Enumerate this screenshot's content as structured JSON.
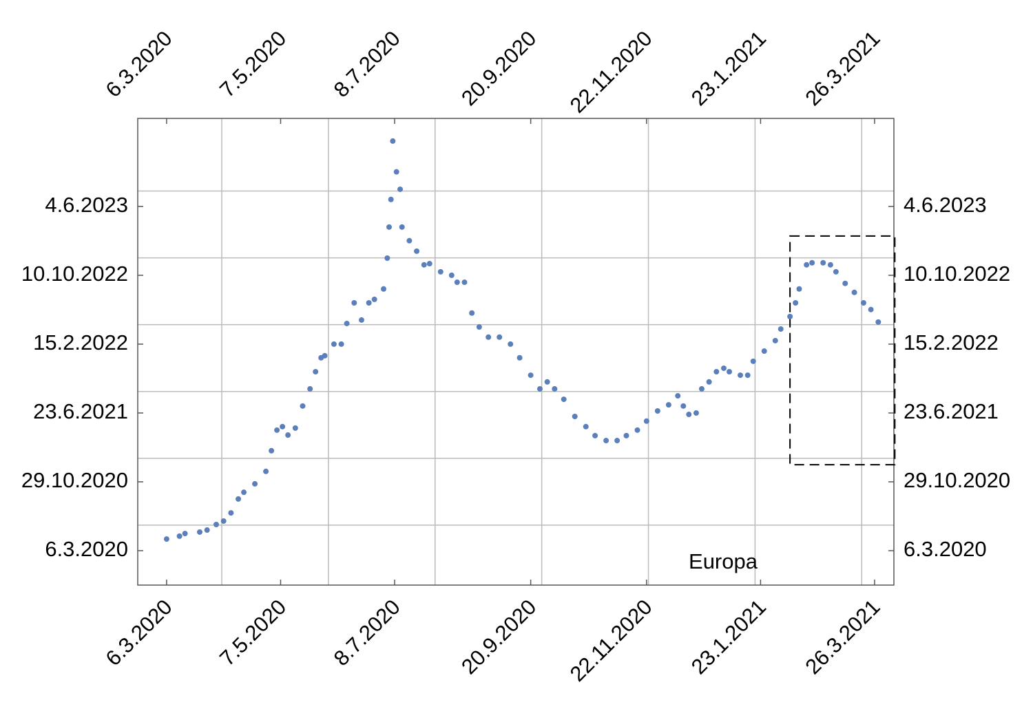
{
  "chart_data": {
    "type": "scatter",
    "annotation": "Europa",
    "color": "#5b7fbb",
    "x": [
      0,
      7,
      10,
      18,
      22,
      27,
      31,
      35,
      39,
      42,
      48,
      54,
      57,
      60,
      63,
      66,
      70,
      74,
      78,
      81,
      84,
      86,
      91,
      95,
      98,
      102,
      106,
      110,
      113,
      118,
      120,
      121,
      122,
      123,
      125,
      127,
      128,
      132,
      136,
      140,
      143,
      149,
      155,
      158,
      162,
      166,
      170,
      175,
      181,
      187,
      192,
      198,
      203,
      207,
      211,
      216,
      222,
      228,
      233,
      239,
      245,
      250,
      256,
      261,
      267,
      273,
      278,
      281,
      284,
      288,
      291,
      295,
      299,
      303,
      306,
      312,
      316,
      319,
      325,
      331,
      334,
      339,
      342,
      344,
      348,
      351,
      357,
      361,
      364,
      369,
      374,
      379,
      383,
      387
    ],
    "y": [
      40,
      50,
      59,
      64,
      71,
      90,
      102,
      130,
      178,
      201,
      230,
      273,
      344,
      415,
      427,
      398,
      422,
      498,
      557,
      616,
      664,
      671,
      711,
      711,
      782,
      853,
      794,
      853,
      865,
      901,
      1007,
      1114,
      1209,
      1410,
      1304,
      1244,
      1114,
      1067,
      1031,
      984,
      988,
      960,
      948,
      924,
      924,
      818,
      770,
      735,
      735,
      711,
      664,
      604,
      557,
      581,
      557,
      521,
      462,
      427,
      396,
      379,
      379,
      396,
      415,
      446,
      481,
      502,
      533,
      498,
      469,
      474,
      557,
      581,
      616,
      628,
      616,
      604,
      604,
      652,
      687,
      723,
      763,
      806,
      853,
      901,
      984,
      991,
      991,
      984,
      960,
      920,
      889,
      853,
      830,
      787
    ],
    "xlim": [
      -15.7,
      395.5
    ],
    "ylim": [
      -118.5,
      1488
    ],
    "xticks": [
      {
        "value": 0,
        "label": "6.3.2020"
      },
      {
        "value": 62,
        "label": "7.5.2020"
      },
      {
        "value": 124,
        "label": "8.7.2020"
      },
      {
        "value": 198,
        "label": "20.9.2020"
      },
      {
        "value": 261,
        "label": "22.11.2020"
      },
      {
        "value": 323,
        "label": "23.1.2021"
      },
      {
        "value": 385,
        "label": "26.3.2021"
      }
    ],
    "yticks": [
      {
        "value": 0,
        "label": "6.3.2020"
      },
      {
        "value": 237,
        "label": "29.10.2020"
      },
      {
        "value": 474,
        "label": "23.6.2021"
      },
      {
        "value": 711,
        "label": "15.2.2022"
      },
      {
        "value": 948,
        "label": "10.10.2022"
      },
      {
        "value": 1185,
        "label": "4.6.2023"
      }
    ],
    "xgrid": [
      30,
      88,
      146,
      204,
      262,
      320,
      378
    ],
    "ygrid": [
      88,
      318,
      548,
      778,
      1008,
      1238
    ],
    "highlight": {
      "x": [
        339,
        396
      ],
      "y": [
        296,
        1083
      ]
    }
  }
}
